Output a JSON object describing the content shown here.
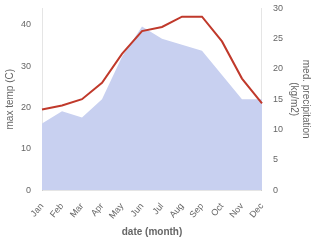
{
  "chart_data": {
    "type": "line",
    "categories": [
      "Jan",
      "Feb",
      "Mar",
      "Apr",
      "May",
      "Jun",
      "Jul",
      "Aug",
      "Sep",
      "Oct",
      "Nov",
      "Dec"
    ],
    "series": [
      {
        "type": "area",
        "axis": "y2",
        "color": "#c8d0f0",
        "values": [
          11,
          13,
          12,
          15,
          22,
          27,
          25,
          24,
          23,
          19,
          15,
          15
        ]
      },
      {
        "type": "line",
        "color": "#c0392b",
        "values": [
          19.5,
          20.5,
          22.0,
          26.0,
          33.0,
          38.5,
          39.5,
          42.0,
          42.0,
          36.0,
          27.0,
          21.0
        ]
      }
    ],
    "xlabel": "date (month)",
    "ylabel": "max temp (C)",
    "y2label": "med. precipitation\n(kg/m2)",
    "ylim": [
      0,
      44
    ],
    "yticks": [
      0,
      10,
      20,
      30,
      40
    ],
    "y2lim": [
      0,
      30
    ],
    "y2ticks": [
      0,
      5,
      10,
      15,
      20,
      25,
      30
    ],
    "grid": false
  }
}
